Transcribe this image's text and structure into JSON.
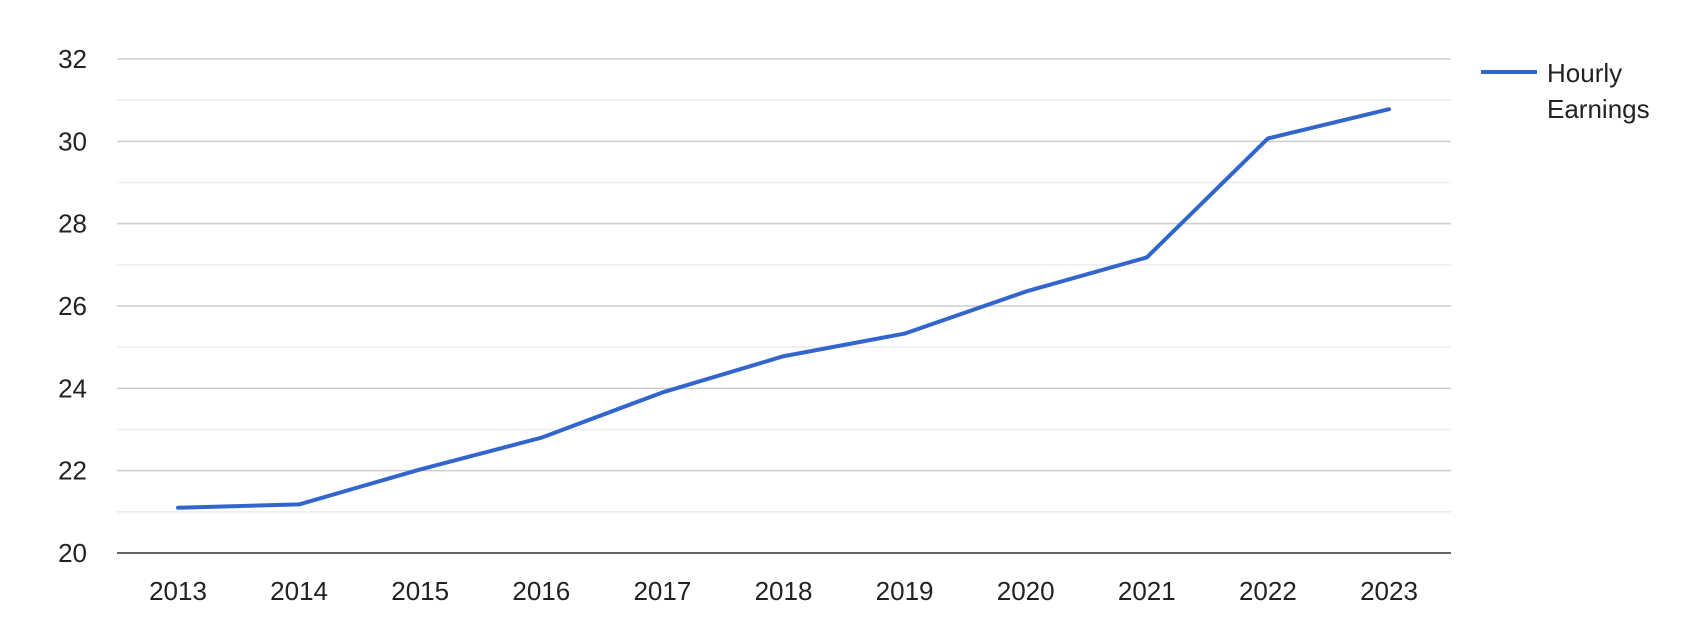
{
  "chart_data": {
    "type": "line",
    "title": "",
    "xlabel": "",
    "ylabel": "",
    "categories": [
      "2013",
      "2014",
      "2015",
      "2016",
      "2017",
      "2018",
      "2019",
      "2020",
      "2021",
      "2022",
      "2023"
    ],
    "series": [
      {
        "name": "Hourly Earnings",
        "values": [
          21.1,
          21.18,
          22.03,
          22.8,
          23.9,
          24.78,
          25.33,
          26.35,
          27.18,
          30.07,
          30.78
        ],
        "color": "#3366cc"
      }
    ],
    "ylim": [
      20,
      32
    ],
    "y_ticks": [
      "20",
      "22",
      "24",
      "26",
      "28",
      "30",
      "32"
    ],
    "grid": true,
    "legend_position": "right",
    "legend_lines": [
      "Hourly",
      "Earnings"
    ],
    "gridline_color": "#cccccc",
    "minor_gridline_color": "#ebebeb"
  }
}
